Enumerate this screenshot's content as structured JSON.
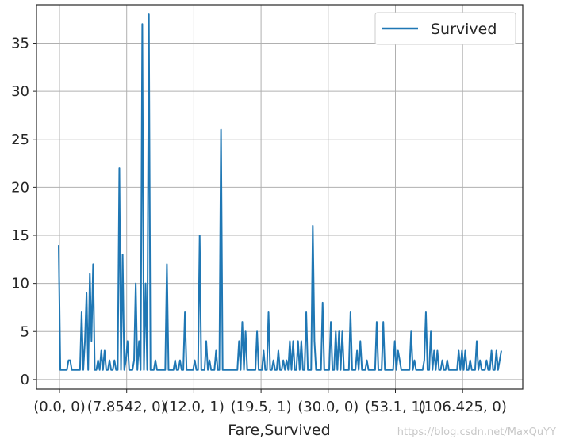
{
  "chart_data": {
    "type": "line",
    "xlabel": "Fare,Survived",
    "ylabel": "",
    "ylim": [
      -1,
      39
    ],
    "yticks": [
      0,
      5,
      10,
      15,
      20,
      25,
      30,
      35
    ],
    "x_tick_labels": [
      "(0.0, 0)",
      "(7.8542, 0)",
      "(12.0, 1)",
      "(19.5, 1)",
      "(30.0, 0)",
      "(53.1, 1)",
      "(106.425, 0)"
    ],
    "grid": true,
    "legend": {
      "placement": "top-right",
      "entries": [
        "Survived"
      ]
    },
    "series": [
      {
        "name": "Survived",
        "color": "#1f77b4",
        "values": [
          14,
          1,
          1,
          1,
          1,
          1,
          2,
          2,
          1,
          1,
          1,
          1,
          1,
          1,
          7,
          1,
          4,
          9,
          1,
          11,
          4,
          12,
          1,
          1,
          2,
          1,
          3,
          1,
          3,
          1,
          1,
          2,
          1,
          1,
          2,
          1,
          1,
          22,
          1,
          13,
          1,
          2,
          4,
          1,
          1,
          1,
          2,
          10,
          1,
          4,
          1,
          37,
          1,
          10,
          1,
          38,
          1,
          1,
          1,
          2,
          1,
          1,
          1,
          1,
          1,
          1,
          12,
          1,
          1,
          1,
          1,
          2,
          1,
          1,
          2,
          1,
          1,
          7,
          1,
          1,
          1,
          1,
          1,
          2,
          1,
          1,
          15,
          1,
          1,
          1,
          4,
          1,
          2,
          1,
          1,
          1,
          3,
          1,
          1,
          26,
          1,
          1,
          1,
          1,
          1,
          1,
          1,
          1,
          1,
          1,
          4,
          1,
          6,
          1,
          5,
          1,
          1,
          1,
          1,
          1,
          1,
          5,
          1,
          1,
          1,
          3,
          1,
          1,
          7,
          1,
          1,
          2,
          1,
          1,
          3,
          1,
          1,
          2,
          1,
          2,
          1,
          4,
          1,
          4,
          1,
          1,
          4,
          1,
          4,
          1,
          1,
          7,
          1,
          1,
          1,
          16,
          4,
          1,
          1,
          1,
          1,
          8,
          1,
          1,
          1,
          1,
          6,
          1,
          1,
          5,
          1,
          5,
          1,
          5,
          1,
          1,
          1,
          1,
          7,
          1,
          1,
          1,
          3,
          1,
          4,
          1,
          1,
          1,
          2,
          1,
          1,
          1,
          1,
          1,
          6,
          1,
          1,
          1,
          6,
          1,
          1,
          1,
          1,
          1,
          1,
          4,
          1,
          3,
          2,
          1,
          1,
          1,
          1,
          1,
          1,
          5,
          1,
          2,
          1,
          1,
          1,
          1,
          1,
          2,
          7,
          1,
          1,
          5,
          1,
          3,
          1,
          3,
          1,
          1,
          2,
          1,
          1,
          2,
          1,
          1,
          1,
          1,
          1,
          1,
          3,
          1,
          3,
          1,
          3,
          1,
          1,
          2,
          1,
          1,
          1,
          4,
          1,
          2,
          1,
          1,
          1,
          2,
          1,
          1,
          3,
          1,
          1,
          3,
          1,
          2,
          3
        ]
      }
    ]
  },
  "watermark": "https://blog.csdn.net/MaxQuYY"
}
